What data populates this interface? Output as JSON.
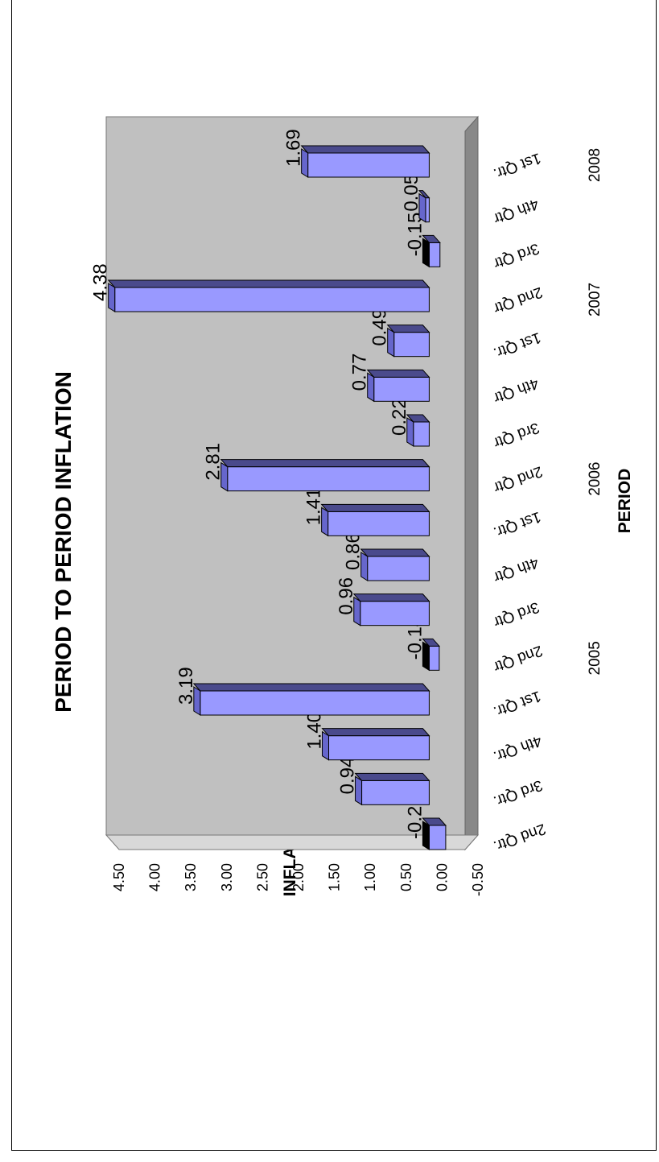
{
  "chart_data": {
    "type": "bar",
    "title": "PERIOD TO PERIOD INFLATION",
    "xlabel": "PERIOD",
    "ylabel": "INFLATION",
    "ylim": [
      -0.5,
      4.5
    ],
    "y_ticks": [
      "4.50",
      "4.00",
      "3.50",
      "3.00",
      "2.50",
      "2.00",
      "1.50",
      "1.00",
      "0.50",
      "0.00",
      "-0.50"
    ],
    "categories": [
      "2nd Qtr.",
      "3rd Qtr.",
      "4th Qtr.",
      "1st Qtr.",
      "2nd Qtr",
      "3rd Qtr",
      "4th Qtr",
      "1st Qtr.",
      "2nd Qtr",
      "3rd Qtr",
      "4th Qtr",
      "1st Qtr.",
      "2nd Qtr",
      "3rd Qtr",
      "4th Qtr",
      "1st Qtr."
    ],
    "values": [
      -0.23,
      0.94,
      1.4,
      3.19,
      -0.14,
      0.96,
      0.86,
      1.41,
      2.81,
      0.22,
      0.77,
      0.49,
      4.38,
      -0.15,
      0.05,
      1.69
    ],
    "value_labels": [
      "-0.23",
      "0.94",
      "1.40",
      "3.19",
      "-0.14",
      "0.96",
      "0.86",
      "1.41",
      "2.81",
      "0.22",
      "0.77",
      "0.49",
      "4.38",
      "-0.15",
      "0.05",
      "1.69"
    ],
    "year_labels": [
      {
        "label": "2005",
        "index": 4
      },
      {
        "label": "2006",
        "index": 8
      },
      {
        "label": "2007",
        "index": 12
      },
      {
        "label": "2008",
        "index": 15
      }
    ],
    "grid": false,
    "rotated": "90deg counter-clockwise",
    "colors": {
      "bar_face": "#9999ff",
      "bar_top": "#4a4a8c",
      "bar_side": "#6666cc",
      "wall": "#c0c0c0",
      "floor": "#a0a0a0",
      "negative_side": "#000000"
    }
  }
}
